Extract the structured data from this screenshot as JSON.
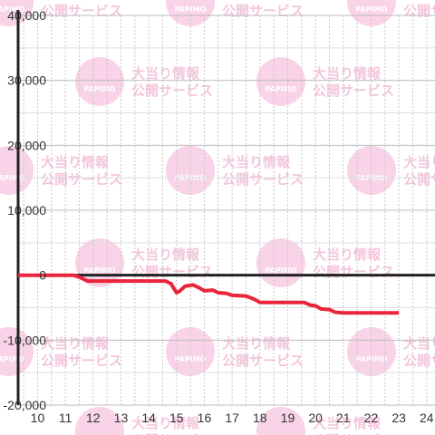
{
  "watermark": {
    "logo_text": "PAPIMO",
    "line1": "大当り情報",
    "line2": "公開サービス",
    "color": "#f4c6dd"
  },
  "chart_data": {
    "type": "line",
    "title": "",
    "xlabel": "",
    "ylabel": "",
    "xlim": [
      9.3,
      24.3
    ],
    "ylim": [
      -20000,
      40000
    ],
    "x_ticks": [
      10,
      11,
      12,
      13,
      14,
      15,
      16,
      17,
      18,
      19,
      20,
      21,
      22,
      23,
      24
    ],
    "y_ticks": [
      -20000,
      -10000,
      0,
      10000,
      20000,
      30000,
      40000
    ],
    "y_tick_labels": [
      "-20,000",
      "-10,000",
      "0",
      "10,000",
      "20,000",
      "30,000",
      "40,000"
    ],
    "grid": true,
    "line_color": "#e8253a",
    "series": [
      {
        "points": [
          [
            9.3,
            0
          ],
          [
            11.3,
            0
          ],
          [
            11.5,
            -300
          ],
          [
            11.8,
            -900
          ],
          [
            12.5,
            -900
          ],
          [
            13.5,
            -900
          ],
          [
            14.6,
            -900
          ],
          [
            14.8,
            -1300
          ],
          [
            14.9,
            -2000
          ],
          [
            15.0,
            -2700
          ],
          [
            15.1,
            -2500
          ],
          [
            15.3,
            -1700
          ],
          [
            15.6,
            -1500
          ],
          [
            15.8,
            -1900
          ],
          [
            16.0,
            -2400
          ],
          [
            16.3,
            -2300
          ],
          [
            16.5,
            -2700
          ],
          [
            16.8,
            -2800
          ],
          [
            17.0,
            -3100
          ],
          [
            17.5,
            -3200
          ],
          [
            17.8,
            -3700
          ],
          [
            18.0,
            -4200
          ],
          [
            19.0,
            -4200
          ],
          [
            19.6,
            -4200
          ],
          [
            19.8,
            -4600
          ],
          [
            20.0,
            -4700
          ],
          [
            20.2,
            -5200
          ],
          [
            20.5,
            -5300
          ],
          [
            20.7,
            -5700
          ],
          [
            21.0,
            -5800
          ],
          [
            22.0,
            -5800
          ],
          [
            23.0,
            -5800
          ]
        ]
      }
    ]
  }
}
